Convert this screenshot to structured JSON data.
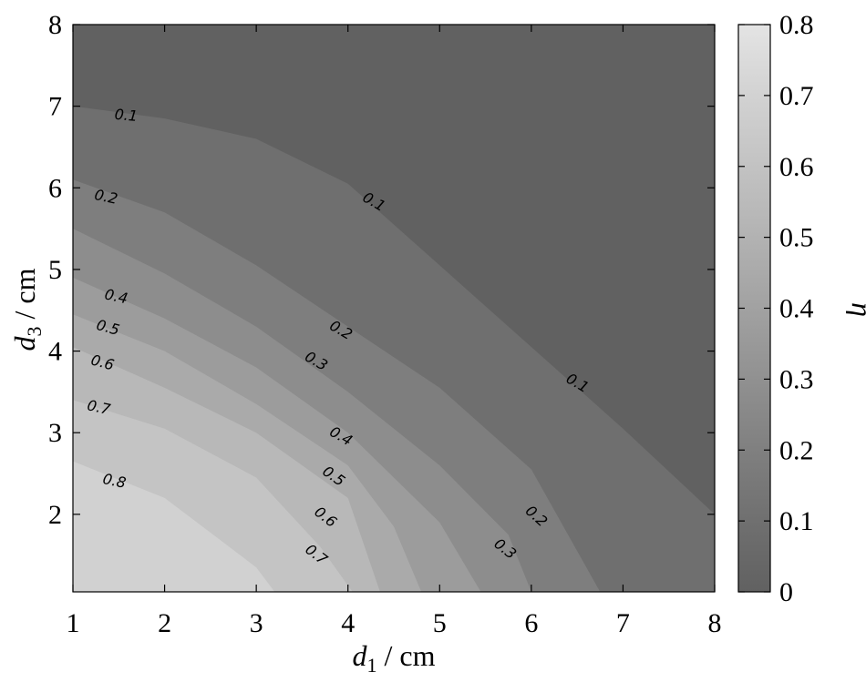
{
  "chart_data": {
    "type": "contour",
    "x_range": [
      1,
      8
    ],
    "y_range": [
      1.05,
      8
    ],
    "x_ticks": [
      "1",
      "2",
      "3",
      "4",
      "5",
      "6",
      "7",
      "8"
    ],
    "y_ticks": [
      "2",
      "3",
      "4",
      "5",
      "6",
      "7",
      "8"
    ],
    "xlabel": {
      "var": "d",
      "sub": "1",
      "unit": " / cm"
    },
    "ylabel": {
      "var": "d",
      "sub": "3",
      "unit": " / cm"
    },
    "colorbar": {
      "label": "η",
      "range": [
        0,
        0.8
      ],
      "ticks": [
        "0",
        "0.1",
        "0.2",
        "0.3",
        "0.4",
        "0.5",
        "0.6",
        "0.7",
        "0.8"
      ],
      "colors": [
        "#616161",
        "#6e6e6e",
        "#7c7c7c",
        "#8b8b8b",
        "#9a9a9a",
        "#a9a9a9",
        "#b8b8b8",
        "#c6c6c6",
        "#d4d4d4",
        "#e4e4e4"
      ]
    },
    "levels": [
      {
        "value": 0.1,
        "color": "#6f6f6f",
        "points": [
          [
            1,
            7.0
          ],
          [
            2,
            6.85
          ],
          [
            3,
            6.6
          ],
          [
            4,
            6.05
          ],
          [
            5,
            5.05
          ],
          [
            6,
            4.05
          ],
          [
            7,
            3.05
          ],
          [
            8,
            2.0
          ],
          [
            8,
            1.05
          ]
        ]
      },
      {
        "value": 0.2,
        "color": "#7e7e7e",
        "points": [
          [
            1,
            6.1
          ],
          [
            2,
            5.7
          ],
          [
            3,
            5.05
          ],
          [
            4,
            4.3
          ],
          [
            5,
            3.55
          ],
          [
            6,
            2.55
          ],
          [
            6.75,
            1.05
          ]
        ]
      },
      {
        "value": 0.3,
        "color": "#8d8d8d",
        "points": [
          [
            1,
            5.5
          ],
          [
            2,
            4.95
          ],
          [
            3,
            4.3
          ],
          [
            4,
            3.5
          ],
          [
            5,
            2.6
          ],
          [
            5.75,
            1.75
          ],
          [
            6.0,
            1.05
          ]
        ]
      },
      {
        "value": 0.4,
        "color": "#9c9c9c",
        "points": [
          [
            1,
            4.9
          ],
          [
            2,
            4.4
          ],
          [
            3,
            3.8
          ],
          [
            4,
            3.0
          ],
          [
            5,
            1.9
          ],
          [
            5.45,
            1.05
          ]
        ]
      },
      {
        "value": 0.5,
        "color": "#aaaaaa",
        "points": [
          [
            1,
            4.45
          ],
          [
            2,
            4.0
          ],
          [
            3,
            3.35
          ],
          [
            4,
            2.6
          ],
          [
            4.5,
            1.85
          ],
          [
            4.8,
            1.05
          ]
        ]
      },
      {
        "value": 0.6,
        "color": "#b8b8b8",
        "points": [
          [
            1,
            4.05
          ],
          [
            2,
            3.55
          ],
          [
            3,
            3.0
          ],
          [
            4,
            2.2
          ],
          [
            4.35,
            1.05
          ]
        ]
      },
      {
        "value": 0.7,
        "color": "#c4c4c4",
        "points": [
          [
            1,
            3.4
          ],
          [
            2,
            3.05
          ],
          [
            3,
            2.45
          ],
          [
            3.7,
            1.6
          ],
          [
            4.05,
            1.05
          ]
        ]
      },
      {
        "value": 0.8,
        "color": "#d1d1d1",
        "points": [
          [
            1,
            2.65
          ],
          [
            2,
            2.2
          ],
          [
            3,
            1.35
          ],
          [
            3.2,
            1.05
          ]
        ]
      }
    ],
    "base_color": "#616161",
    "labels": [
      {
        "text": "0.1",
        "x": 1.58,
        "y": 6.88,
        "angle": 5
      },
      {
        "text": "0.1",
        "x": 4.28,
        "y": 5.82,
        "angle": 30
      },
      {
        "text": "0.1",
        "x": 6.5,
        "y": 3.6,
        "angle": 30
      },
      {
        "text": "0.2",
        "x": 1.36,
        "y": 5.88,
        "angle": 12
      },
      {
        "text": "0.2",
        "x": 3.92,
        "y": 4.25,
        "angle": 30
      },
      {
        "text": "0.2",
        "x": 6.05,
        "y": 1.97,
        "angle": 42
      },
      {
        "text": "0.3",
        "x": 3.65,
        "y": 3.87,
        "angle": 30
      },
      {
        "text": "0.3",
        "x": 5.71,
        "y": 1.57,
        "angle": 38
      },
      {
        "text": "0.4",
        "x": 1.47,
        "y": 4.66,
        "angle": 12
      },
      {
        "text": "0.4",
        "x": 3.92,
        "y": 2.95,
        "angle": 30
      },
      {
        "text": "0.5",
        "x": 1.38,
        "y": 4.28,
        "angle": 15
      },
      {
        "text": "0.5",
        "x": 3.84,
        "y": 2.46,
        "angle": 35
      },
      {
        "text": "0.6",
        "x": 1.32,
        "y": 3.85,
        "angle": 15
      },
      {
        "text": "0.6",
        "x": 3.75,
        "y": 1.96,
        "angle": 38
      },
      {
        "text": "0.7",
        "x": 1.28,
        "y": 3.3,
        "angle": 12
      },
      {
        "text": "0.7",
        "x": 3.65,
        "y": 1.5,
        "angle": 38
      },
      {
        "text": "0.8",
        "x": 1.45,
        "y": 2.4,
        "angle": 12
      }
    ]
  }
}
